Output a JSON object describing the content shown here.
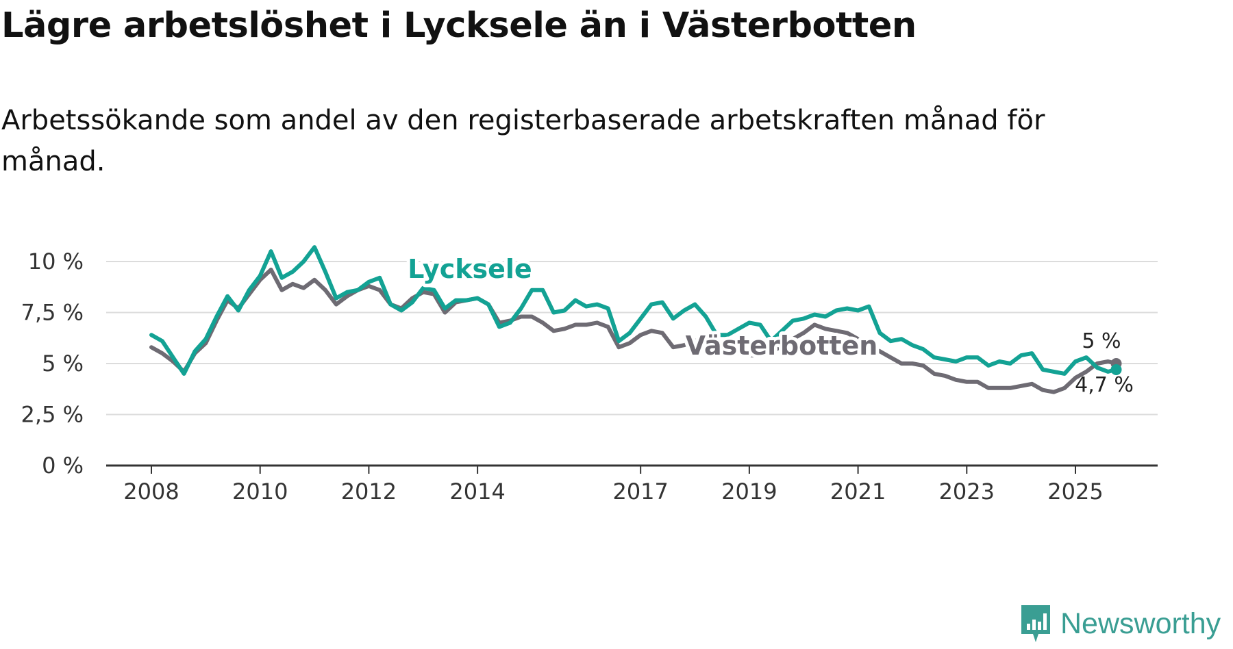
{
  "title": "Lägre arbetslöshet i Lycksele än i Västerbotten",
  "subtitle": "Arbetssökande som andel av den registerbaserade arbetskraften månad för månad.",
  "brand": {
    "name": "Newsworthy",
    "color": "#3a9e93"
  },
  "colors": {
    "lycksele": "#13a294",
    "vasterbotten": "#6e6b73",
    "grid": "#dcdcdc",
    "axis": "#333333"
  },
  "chart_data": {
    "type": "line",
    "title": "Lägre arbetslöshet i Lycksele än i Västerbotten",
    "xlabel": "",
    "ylabel": "",
    "xlim": [
      2008,
      2026.8
    ],
    "ylim": [
      0,
      10
    ],
    "grid": true,
    "y_ticks": [
      0,
      2.5,
      5,
      7.5,
      10
    ],
    "y_tick_labels": [
      "0 %",
      "2,5 %",
      "5 %",
      "7,5 %",
      "10 %"
    ],
    "x_ticks": [
      2008,
      2010,
      2012,
      2014,
      2017,
      2019,
      2021,
      2023,
      2025
    ],
    "x_tick_labels": [
      "2008",
      "2010",
      "2012",
      "2014",
      "2017",
      "2019",
      "2021",
      "2023",
      "2025"
    ],
    "series": [
      {
        "name": "Lycksele",
        "key": "lycksele",
        "label": "Lycksele",
        "end_label": "4,7 %",
        "x": [
          2008.0,
          2008.2,
          2008.4,
          2008.6,
          2008.8,
          2009.0,
          2009.2,
          2009.4,
          2009.6,
          2009.8,
          2010.0,
          2010.2,
          2010.4,
          2010.6,
          2010.8,
          2011.0,
          2011.2,
          2011.4,
          2011.6,
          2011.8,
          2012.0,
          2012.2,
          2012.4,
          2012.6,
          2012.8,
          2013.0,
          2013.2,
          2013.4,
          2013.6,
          2013.8,
          2014.0,
          2014.2,
          2014.4,
          2014.6,
          2014.8,
          2015.0,
          2015.2,
          2015.4,
          2015.6,
          2015.8,
          2016.0,
          2016.2,
          2016.4,
          2016.6,
          2016.8,
          2017.0,
          2017.2,
          2017.4,
          2017.6,
          2017.8,
          2018.0,
          2018.2,
          2018.4,
          2018.6,
          2018.8,
          2019.0,
          2019.2,
          2019.4,
          2019.6,
          2019.8,
          2020.0,
          2020.2,
          2020.4,
          2020.6,
          2020.8,
          2021.0,
          2021.2,
          2021.4,
          2021.6,
          2021.8,
          2022.0,
          2022.2,
          2022.4,
          2022.6,
          2022.8,
          2023.0,
          2023.2,
          2023.4,
          2023.6,
          2023.8,
          2024.0,
          2024.2,
          2024.4,
          2024.6,
          2024.8,
          2025.0,
          2025.2,
          2025.4,
          2025.6,
          2025.75
        ],
        "values": [
          6.4,
          6.1,
          5.3,
          4.5,
          5.6,
          6.2,
          7.3,
          8.3,
          7.6,
          8.6,
          9.3,
          10.5,
          9.2,
          9.5,
          10.0,
          10.7,
          9.5,
          8.2,
          8.5,
          8.6,
          9.0,
          9.2,
          7.9,
          7.6,
          8.0,
          8.7,
          8.6,
          7.7,
          8.1,
          8.1,
          8.2,
          7.9,
          6.8,
          7.0,
          7.7,
          8.6,
          8.6,
          7.5,
          7.6,
          8.1,
          7.8,
          7.9,
          7.7,
          6.1,
          6.5,
          7.2,
          7.9,
          8.0,
          7.2,
          7.6,
          7.9,
          7.3,
          6.4,
          6.4,
          6.7,
          7.0,
          6.9,
          6.1,
          6.6,
          7.1,
          7.2,
          7.4,
          7.3,
          7.6,
          7.7,
          7.6,
          7.8,
          6.5,
          6.1,
          6.2,
          5.9,
          5.7,
          5.3,
          5.2,
          5.1,
          5.3,
          5.3,
          4.9,
          5.1,
          5.0,
          5.4,
          5.5,
          4.7,
          4.6,
          4.5,
          5.1,
          5.3,
          4.8,
          4.6,
          4.7
        ]
      },
      {
        "name": "Västerbotten",
        "key": "vasterbotten",
        "label": "Västerbotten",
        "end_label": "5 %",
        "x": [
          2008.0,
          2008.2,
          2008.4,
          2008.6,
          2008.8,
          2009.0,
          2009.2,
          2009.4,
          2009.6,
          2009.8,
          2010.0,
          2010.2,
          2010.4,
          2010.6,
          2010.8,
          2011.0,
          2011.2,
          2011.4,
          2011.6,
          2011.8,
          2012.0,
          2012.2,
          2012.4,
          2012.6,
          2012.8,
          2013.0,
          2013.2,
          2013.4,
          2013.6,
          2013.8,
          2014.0,
          2014.2,
          2014.4,
          2014.6,
          2014.8,
          2015.0,
          2015.2,
          2015.4,
          2015.6,
          2015.8,
          2016.0,
          2016.2,
          2016.4,
          2016.6,
          2016.8,
          2017.0,
          2017.2,
          2017.4,
          2017.6,
          2017.8,
          2018.0,
          2018.2,
          2018.4,
          2018.6,
          2018.8,
          2019.0,
          2019.2,
          2019.4,
          2019.6,
          2019.8,
          2020.0,
          2020.2,
          2020.4,
          2020.6,
          2020.8,
          2021.0,
          2021.2,
          2021.4,
          2021.6,
          2021.8,
          2022.0,
          2022.2,
          2022.4,
          2022.6,
          2022.8,
          2023.0,
          2023.2,
          2023.4,
          2023.6,
          2023.8,
          2024.0,
          2024.2,
          2024.4,
          2024.6,
          2024.8,
          2025.0,
          2025.2,
          2025.4,
          2025.6,
          2025.75
        ],
        "values": [
          5.8,
          5.5,
          5.1,
          4.6,
          5.5,
          6.0,
          7.1,
          8.1,
          7.7,
          8.4,
          9.1,
          9.6,
          8.6,
          8.9,
          8.7,
          9.1,
          8.6,
          7.9,
          8.3,
          8.6,
          8.8,
          8.6,
          7.9,
          7.7,
          8.2,
          8.5,
          8.4,
          7.5,
          8.0,
          8.1,
          8.2,
          7.9,
          7.0,
          7.1,
          7.3,
          7.3,
          7.0,
          6.6,
          6.7,
          6.9,
          6.9,
          7.0,
          6.8,
          5.8,
          6.0,
          6.4,
          6.6,
          6.5,
          5.8,
          5.9,
          6.1,
          6.3,
          5.9,
          5.8,
          5.5,
          5.4,
          5.4,
          5.5,
          5.9,
          6.2,
          6.5,
          6.9,
          6.7,
          6.6,
          6.5,
          6.2,
          5.8,
          5.6,
          5.3,
          5.0,
          5.0,
          4.9,
          4.5,
          4.4,
          4.2,
          4.1,
          4.1,
          3.8,
          3.8,
          3.8,
          3.9,
          4.0,
          3.7,
          3.6,
          3.8,
          4.3,
          4.6,
          5.0,
          5.1,
          5.0
        ]
      }
    ],
    "annotations": [
      {
        "text": "Lycksele",
        "series": "lycksele"
      },
      {
        "text": "Västerbotten",
        "series": "vasterbotten"
      },
      {
        "text": "5 %",
        "series": "vasterbotten"
      },
      {
        "text": "4,7 %",
        "series": "lycksele"
      }
    ]
  }
}
